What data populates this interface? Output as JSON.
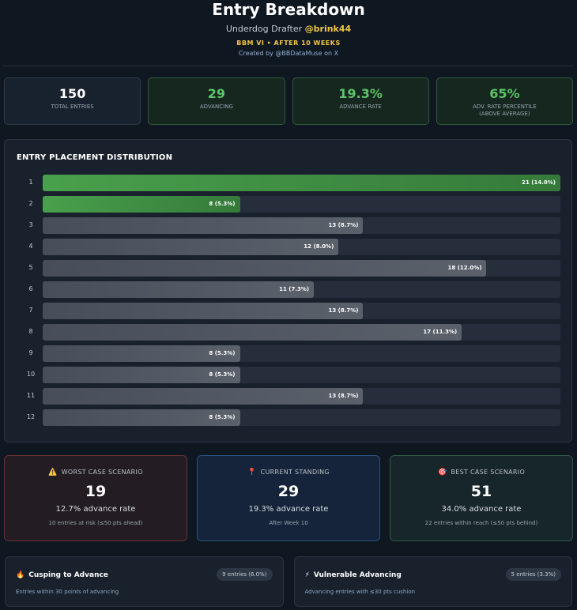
{
  "header": {
    "title": "Entry Breakdown",
    "subtitle_prefix": "Underdog Drafter",
    "handle": "@brink44",
    "event": "BBM VI • AFTER 10 WEEKS",
    "credit": "Created by @BBDataMuse on X"
  },
  "stats": [
    {
      "value": "150",
      "label": "TOTAL ENTRIES",
      "accent": false
    },
    {
      "value": "29",
      "label": "ADVANCING",
      "accent": true
    },
    {
      "value": "19.3%",
      "label": "ADVANCE RATE",
      "accent": true
    },
    {
      "value": "65%",
      "label": "ADV. RATE PERCENTILE",
      "label2": "(ABOVE AVERAGE)",
      "accent": true
    }
  ],
  "distribution": {
    "title": "ENTRY PLACEMENT DISTRIBUTION",
    "max_count": 21,
    "advancing_ranks": [
      1,
      2
    ],
    "rows": [
      {
        "rank": "1",
        "count": 21,
        "label": "21 (14.0%)"
      },
      {
        "rank": "2",
        "count": 8,
        "label": "8 (5.3%)"
      },
      {
        "rank": "3",
        "count": 13,
        "label": "13 (8.7%)"
      },
      {
        "rank": "4",
        "count": 12,
        "label": "12 (8.0%)"
      },
      {
        "rank": "5",
        "count": 18,
        "label": "18 (12.0%)"
      },
      {
        "rank": "6",
        "count": 11,
        "label": "11 (7.3%)"
      },
      {
        "rank": "7",
        "count": 13,
        "label": "13 (8.7%)"
      },
      {
        "rank": "8",
        "count": 17,
        "label": "17 (11.3%)"
      },
      {
        "rank": "9",
        "count": 8,
        "label": "8 (5.3%)"
      },
      {
        "rank": "10",
        "count": 8,
        "label": "8 (5.3%)"
      },
      {
        "rank": "11",
        "count": 13,
        "label": "13 (8.7%)"
      },
      {
        "rank": "12",
        "count": 8,
        "label": "8 (5.3%)"
      }
    ]
  },
  "scenarios": {
    "worst": {
      "icon": "⚠️",
      "title": "WORST CASE SCENARIO",
      "value": "19",
      "rate": "12.7% advance rate",
      "note": "10 entries at risk (≤50 pts ahead)"
    },
    "current": {
      "icon": "📍",
      "title": "CURRENT STANDING",
      "value": "29",
      "rate": "19.3% advance rate",
      "note": "After Week 10"
    },
    "best": {
      "icon": "🎯",
      "title": "BEST CASE SCENARIO",
      "value": "51",
      "rate": "34.0% advance rate",
      "note": "22 entries within reach (≤50 pts behind)"
    }
  },
  "bottom": {
    "cusping": {
      "icon": "🔥",
      "title": "Cusping to Advance",
      "pill": "9 entries (6.0%)",
      "desc": "Entries within 30 points of advancing"
    },
    "vulnerable": {
      "icon": "⚡",
      "title": "Vulnerable Advancing",
      "pill": "5 entries (3.3%)",
      "desc": "Advancing entries with ≤30 pts cushion"
    }
  },
  "colors": {
    "advancing": "#49a04c",
    "handle": "#f2c744",
    "accent_green": "#5cc468"
  }
}
